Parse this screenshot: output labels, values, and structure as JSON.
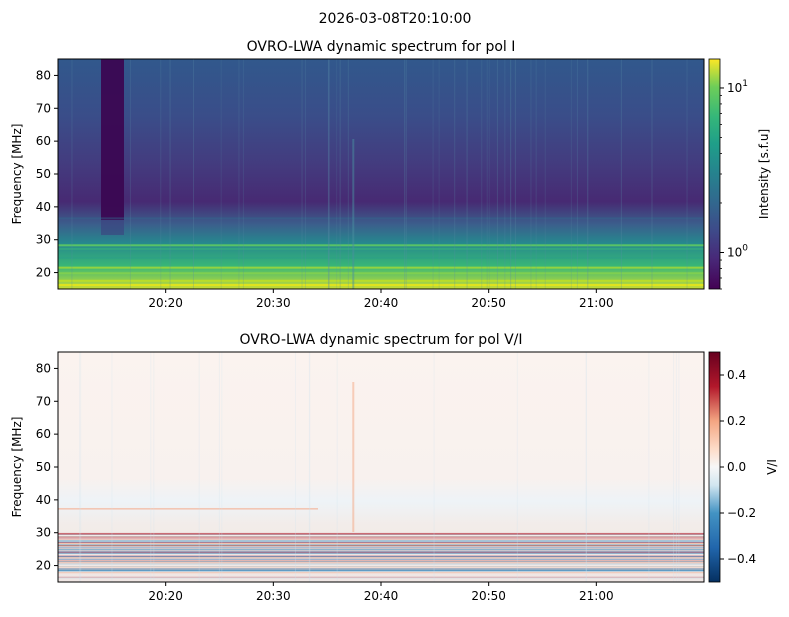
{
  "suptitle": "2026-03-08T20:10:00",
  "chart_data": [
    {
      "type": "heatmap",
      "title": "OVRO-LWA dynamic spectrum for pol I",
      "xlabel": "",
      "ylabel": "Frequency [MHz]",
      "x_range": [
        "20:10:00",
        "21:10:00"
      ],
      "x_ticks": [
        "20:20",
        "20:30",
        "20:40",
        "20:50",
        "21:00"
      ],
      "ylim": [
        15,
        85
      ],
      "y_ticks": [
        20,
        30,
        40,
        50,
        60,
        70,
        80
      ],
      "colormap": "viridis",
      "color_scale": "log",
      "colorbar": {
        "label": "Intensity [s.f.u]",
        "range": [
          0.6,
          15
        ],
        "tick_labels": [
          "10^0",
          "10^1"
        ],
        "tick_values": [
          1,
          10
        ]
      }
    },
    {
      "type": "heatmap",
      "title": "OVRO-LWA dynamic spectrum for pol V/I",
      "xlabel": "",
      "ylabel": "Frequency [MHz]",
      "x_range": [
        "20:10:00",
        "21:10:00"
      ],
      "x_ticks": [
        "20:20",
        "20:30",
        "20:40",
        "20:50",
        "21:00"
      ],
      "ylim": [
        15,
        85
      ],
      "y_ticks": [
        20,
        30,
        40,
        50,
        60,
        70,
        80
      ],
      "colormap": "RdBu_r",
      "color_scale": "linear",
      "colorbar": {
        "label": "V/I",
        "range": [
          -0.5,
          0.5
        ],
        "tick_labels": [
          "0.4",
          "0.2",
          "0.0",
          "−0.2",
          "−0.4"
        ],
        "tick_values": [
          0.4,
          0.2,
          0.0,
          -0.2,
          -0.4
        ]
      }
    }
  ]
}
